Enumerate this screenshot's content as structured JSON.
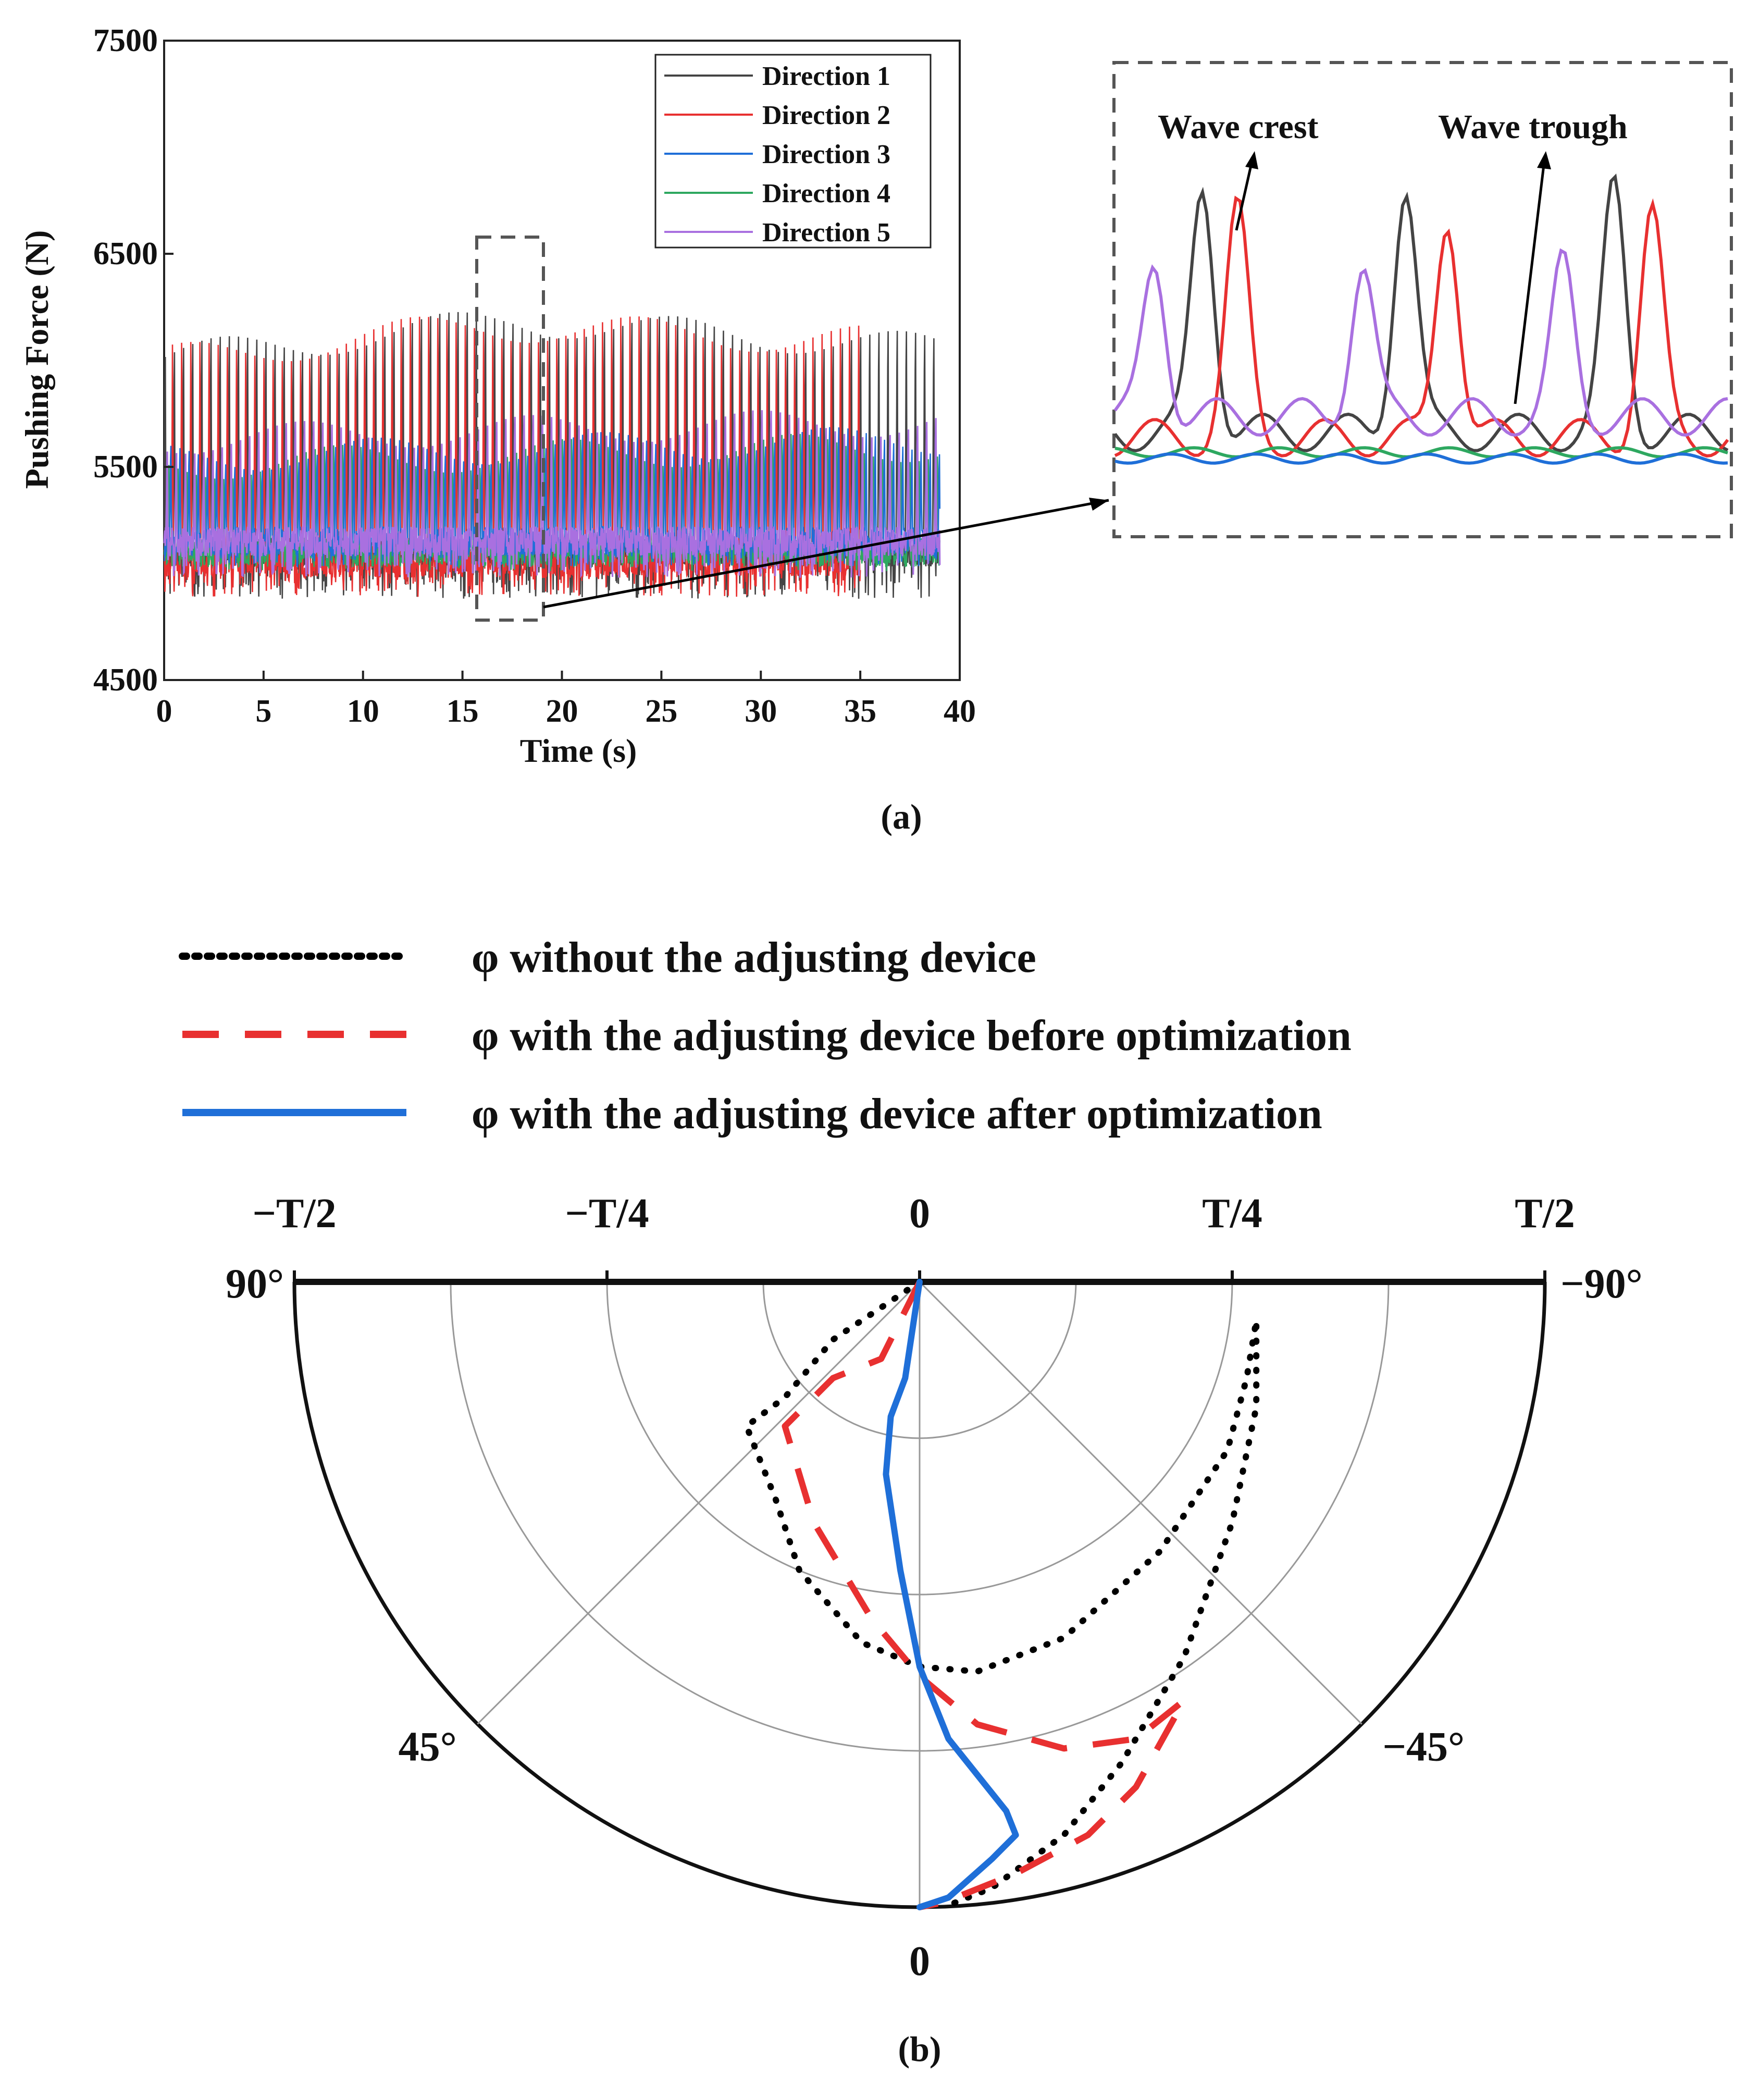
{
  "chart_data": [
    {
      "id": "a",
      "type": "line",
      "caption": "(a)",
      "xlabel": "Time (s)",
      "ylabel": "Pushing Force (N)",
      "xlim": [
        0,
        40
      ],
      "ylim": [
        4500,
        7500
      ],
      "xticks": [
        "0",
        "5",
        "10",
        "15",
        "20",
        "25",
        "30",
        "35",
        "40"
      ],
      "yticks": [
        "4500",
        "5500",
        "6500",
        "7500"
      ],
      "legend_position": "top-right",
      "series": [
        {
          "name": "Direction 1",
          "color": "#444444",
          "t_end": 39,
          "peak_start": 6150,
          "peak_mid": 6350,
          "peak_end": 6200,
          "base": 5100,
          "trough": 4950
        },
        {
          "name": "Direction 2",
          "color": "#e83030",
          "t_end": 35,
          "peak_start": 6100,
          "peak_mid": 6280,
          "peak_end": 6200,
          "base": 5050,
          "trough": 4960
        },
        {
          "name": "Direction 3",
          "color": "#1f6fd8",
          "t_end": 39,
          "peak_start": 5600,
          "peak_mid": 5650,
          "peak_end": 5700,
          "base": 5150,
          "trough": 5100
        },
        {
          "name": "Direction 4",
          "color": "#2ea860",
          "t_end": 39,
          "peak_start": 5550,
          "peak_mid": 5600,
          "peak_end": 5650,
          "base": 5100,
          "trough": 5080
        },
        {
          "name": "Direction 5",
          "color": "#a970e0",
          "t_end": 39,
          "peak_start": 5700,
          "peak_mid": 5750,
          "peak_end": 5800,
          "base": 5150,
          "trough": 5050
        }
      ],
      "zoom_window_x": [
        15.8,
        19
      ],
      "zoom_window_y": [
        4780,
        6580
      ],
      "inset": {
        "annotations": [
          "Wave crest",
          "Wave trough"
        ]
      }
    },
    {
      "id": "b",
      "type": "polar",
      "caption": "(b)",
      "angle_labels": [
        "90°",
        "45°",
        "0",
        "−45°",
        "−90°"
      ],
      "time_labels": [
        "−T/2",
        "−T/4",
        "0",
        "T/4",
        "T/2"
      ],
      "series": [
        {
          "name": "φ without the adjusting device",
          "style": "dotted",
          "color": "#000000",
          "points": [
            [
              0,
              0
            ],
            [
              -0.18,
              0.12
            ],
            [
              -0.28,
              0.24
            ],
            [
              -0.36,
              0.3
            ],
            [
              -0.3,
              0.45
            ],
            [
              -0.25,
              0.6
            ],
            [
              -0.12,
              0.75
            ],
            [
              0,
              0.8
            ],
            [
              0.12,
              0.81
            ],
            [
              0.3,
              0.74
            ],
            [
              0.5,
              0.56
            ],
            [
              0.64,
              0.35
            ],
            [
              0.68,
              0.2
            ],
            [
              0.7,
              0.08
            ],
            [
              0.7,
              0.26
            ],
            [
              0.65,
              0.5
            ],
            [
              0.55,
              0.78
            ],
            [
              0.42,
              1.0
            ],
            [
              0.3,
              1.15
            ],
            [
              0.15,
              1.26
            ],
            [
              0.05,
              1.3
            ]
          ]
        },
        {
          "name": "φ with the adjusting device before optimization",
          "style": "dashed",
          "color": "#e83030",
          "points": [
            [
              0,
              0
            ],
            [
              -0.08,
              0.16
            ],
            [
              -0.18,
              0.2
            ],
            [
              -0.28,
              0.3
            ],
            [
              -0.22,
              0.5
            ],
            [
              -0.1,
              0.7
            ],
            [
              0,
              0.82
            ],
            [
              0.12,
              0.92
            ],
            [
              0.3,
              0.97
            ],
            [
              0.45,
              0.95
            ],
            [
              0.55,
              0.87
            ],
            [
              0.45,
              1.05
            ],
            [
              0.35,
              1.15
            ],
            [
              0.2,
              1.23
            ],
            [
              0.05,
              1.29
            ],
            [
              0,
              1.3
            ]
          ]
        },
        {
          "name": "φ with the adjusting device after optimization",
          "style": "solid",
          "color": "#1f6fd8",
          "points": [
            [
              0,
              0
            ],
            [
              -0.03,
              0.2
            ],
            [
              -0.06,
              0.28
            ],
            [
              -0.07,
              0.4
            ],
            [
              -0.04,
              0.6
            ],
            [
              0,
              0.8
            ],
            [
              0.06,
              0.95
            ],
            [
              0.18,
              1.1
            ],
            [
              0.2,
              1.15
            ],
            [
              0.15,
              1.2
            ],
            [
              0.06,
              1.28
            ],
            [
              0,
              1.3
            ]
          ]
        }
      ]
    }
  ]
}
